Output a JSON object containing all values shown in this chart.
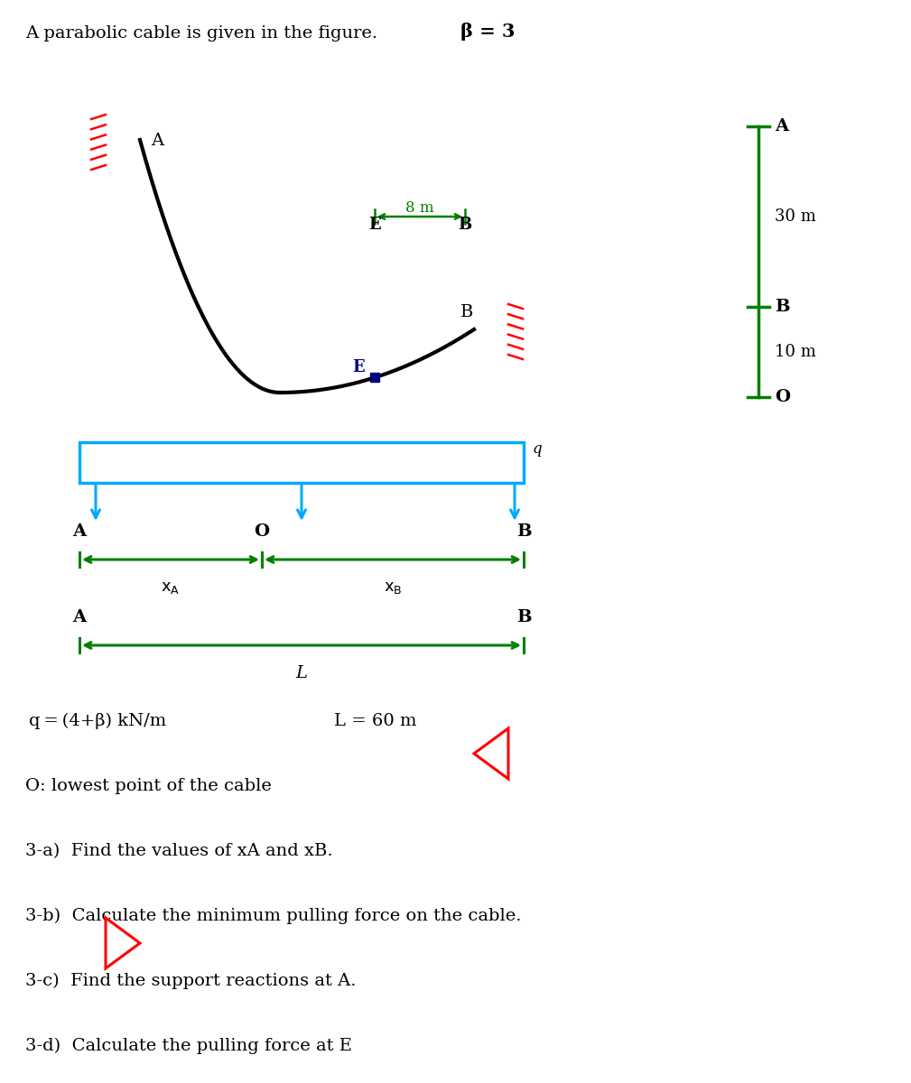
{
  "title_text": "A parabolic cable is given in the figure.",
  "beta_text": "β = 3",
  "bg_color": "#ffffff",
  "cable_color": "#000000",
  "support_color": "#ff0000",
  "dim_color": "#008000",
  "blue_color": "#00aaff",
  "dark_blue": "#000080",
  "black": "#000000",
  "q_label": "q",
  "label_A": "A",
  "label_B": "B",
  "label_O": "O",
  "label_E": "E",
  "label_L": "L",
  "dim_8m": "8 m",
  "dim_30m": "30 m",
  "dim_10m": "10 m",
  "dim_L60": "L = 60 m",
  "q_formula": "q = (4+β) kN/m",
  "lowest_text": "O: lowest point of the cable",
  "q3a": "3-a)  Find the values of xA and xB.",
  "q3b": "3-b)  Calculate the minimum pulling force on the cable.",
  "q3c": "3-c)  Find the support reactions at A.",
  "q3d": "3-d)  Calculate the pulling force at E"
}
